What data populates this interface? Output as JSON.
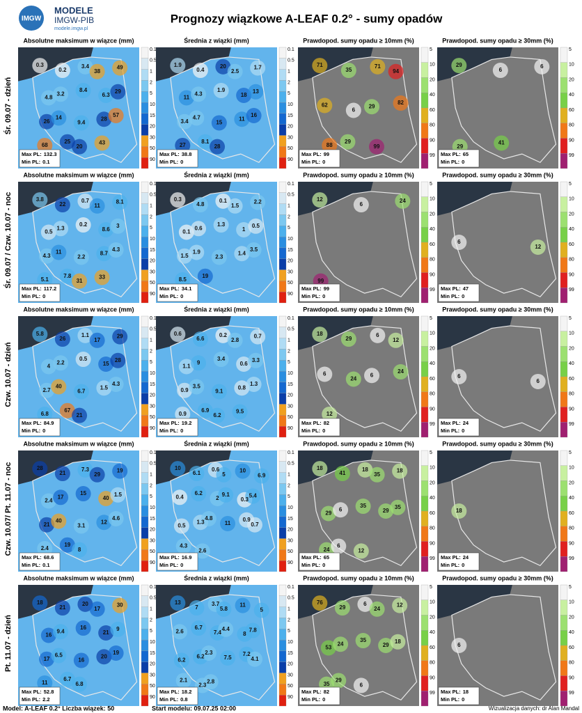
{
  "header": {
    "logo": "IMGW",
    "brand": "MODELE",
    "org": "IMGW-PIB",
    "url": "modele.imgw.pl",
    "title": "Prognozy wiązkowe A-LEAF 0.2° - sumy opadów"
  },
  "columns": [
    {
      "title": "Absolutne maksimum w wiązce (mm)",
      "scale": "precip"
    },
    {
      "title": "Średnia z wiązki (mm)",
      "scale": "precip"
    },
    {
      "title": "Prawdopod. sumy opadu ≥ 10mm (%)",
      "scale": "prob"
    },
    {
      "title": "Prawdopod. sumy opadu ≥ 30mm (%)",
      "scale": "prob"
    }
  ],
  "scales": {
    "precip": {
      "ticks": [
        0.1,
        0.5,
        1,
        2,
        5,
        10,
        15,
        20,
        30,
        50,
        90
      ],
      "colors": [
        "#f4f4f4",
        "#d8e8f2",
        "#b0dcf4",
        "#7cc8f0",
        "#4cb0ec",
        "#2a8ee0",
        "#1468d0",
        "#0a3ea8",
        "#f0a020",
        "#f07818",
        "#e02010"
      ]
    },
    "prob": {
      "ticks": [
        5,
        10,
        20,
        40,
        60,
        80,
        90,
        99
      ],
      "colors": [
        "#f4f4f4",
        "#c8f0a0",
        "#9ce070",
        "#78d048",
        "#e0b020",
        "#f07818",
        "#e02020",
        "#a02070"
      ]
    }
  },
  "stat_labels": {
    "max": "Max PL:",
    "min": "Min PL:"
  },
  "rows": [
    {
      "label": "Śr. 09.07 - dzień",
      "panels": [
        {
          "max": 132.3,
          "min": 0.1,
          "labels": [
            0.3,
            0.2,
            3.4,
            38,
            49,
            4.8,
            3.2,
            8.4,
            6.3,
            29,
            26,
            14,
            9.4,
            28,
            57,
            68,
            25,
            20,
            43
          ]
        },
        {
          "max": 38.8,
          "min": 0,
          "labels": [
            1.9,
            0.4,
            20,
            2.5,
            1.7,
            11,
            4.3,
            1.9,
            18,
            13,
            3.4,
            4.7,
            15,
            11,
            16,
            27,
            8.1,
            28
          ]
        },
        {
          "max": 99,
          "min": 0,
          "labels": [
            71,
            35,
            71,
            94,
            62,
            6,
            29,
            82,
            88,
            29,
            99
          ]
        },
        {
          "max": 65,
          "min": 0,
          "labels": [
            29,
            6,
            6,
            29,
            41
          ]
        }
      ]
    },
    {
      "label": "Śr. 09.07 / Czw. 10.07 - noc",
      "panels": [
        {
          "max": 117.2,
          "min": 0,
          "labels": [
            3.8,
            22,
            0.7,
            11,
            8.1,
            0.5,
            1.3,
            0.2,
            8.6,
            3,
            4.3,
            11,
            2.2,
            8.7,
            4.3,
            5.1,
            7.8,
            31,
            33
          ]
        },
        {
          "max": 34.1,
          "min": 0,
          "labels": [
            0.3,
            4.8,
            0.1,
            1.5,
            2.2,
            0.1,
            0.6,
            1.3,
            1,
            0.5,
            1.5,
            1.9,
            2.3,
            1.4,
            3.5,
            8.5,
            19
          ]
        },
        {
          "max": 99,
          "min": 0,
          "labels": [
            12,
            6,
            24,
            99
          ]
        },
        {
          "max": 47,
          "min": 0,
          "labels": [
            6,
            12
          ]
        }
      ]
    },
    {
      "label": "Czw. 10.07 - dzień",
      "panels": [
        {
          "max": 84.9,
          "min": 0,
          "labels": [
            5.8,
            26,
            1.1,
            17,
            29,
            4,
            2.2,
            0.5,
            15,
            28,
            2.7,
            40,
            6.7,
            1.5,
            4.3,
            6.8,
            67,
            21
          ]
        },
        {
          "max": 19.2,
          "min": 0,
          "labels": [
            0.6,
            6.6,
            0.2,
            2.8,
            0.7,
            1.1,
            9,
            3.4,
            0.6,
            3.3,
            0.9,
            3.5,
            9.1,
            0.8,
            1.3,
            0.9,
            6.9,
            6.2,
            9.5
          ]
        },
        {
          "max": 82,
          "min": 0,
          "labels": [
            18,
            29,
            6,
            12,
            6,
            24,
            6,
            24,
            12
          ]
        },
        {
          "max": 24,
          "min": 0,
          "labels": [
            6,
            6
          ]
        }
      ]
    },
    {
      "label": "Czw. 10.07/ Pt. 11.07 - noc",
      "panels": [
        {
          "max": 68.6,
          "min": 0.1,
          "labels": [
            28,
            21,
            7.3,
            29,
            19,
            2.4,
            17,
            15,
            40,
            1.5,
            21,
            40,
            3.1,
            12,
            4.6,
            2.4,
            19,
            8
          ]
        },
        {
          "max": 16.9,
          "min": 0,
          "labels": [
            10,
            6.1,
            0.6,
            5,
            10,
            6.9,
            0.4,
            6.2,
            2,
            9.1,
            0.3,
            5.4,
            0.5,
            1.3,
            4.8,
            11,
            0.9,
            0.7,
            4.3,
            2.6
          ]
        },
        {
          "max": 65,
          "min": 0,
          "labels": [
            18,
            41,
            18,
            35,
            18,
            29,
            6,
            35,
            29,
            35,
            24,
            6,
            12
          ]
        },
        {
          "max": 24,
          "min": 0,
          "labels": [
            18
          ]
        }
      ]
    },
    {
      "label": "Pt. 11.07 - dzień",
      "panels": [
        {
          "max": 52.8,
          "min": 2.2,
          "labels": [
            18,
            21,
            20,
            17,
            30,
            16,
            9.4,
            16,
            21,
            9,
            17,
            6.5,
            16,
            20,
            19,
            11,
            6.7,
            6.8
          ]
        },
        {
          "max": 18.2,
          "min": 0.8,
          "labels": [
            13,
            7,
            3.7,
            5.8,
            11,
            5,
            2.6,
            6.7,
            7.4,
            4.4,
            8,
            7.8,
            6.2,
            6.2,
            2.3,
            7.5,
            7.2,
            4.1,
            2.1,
            2.3,
            2.8
          ]
        },
        {
          "max": 82,
          "min": 0,
          "labels": [
            76,
            29,
            6,
            24,
            12,
            53,
            24,
            35,
            29,
            18,
            35,
            29,
            6
          ]
        },
        {
          "max": 18,
          "min": 0,
          "labels": [
            6
          ]
        }
      ]
    }
  ],
  "footer": {
    "model": "Model: A-LEAF 0.2°  Liczba wiązek: 50",
    "start": "Start modelu: 09.07.25 02:00",
    "credit": "Wizualizacja danych: dr Alan Mandal"
  }
}
